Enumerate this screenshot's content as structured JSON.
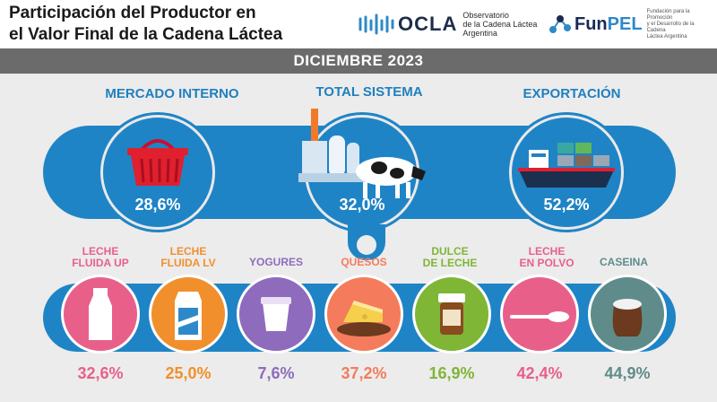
{
  "header": {
    "title_line1": "Participación del Productor en",
    "title_line2": "el Valor Final de la Cadena Láctea",
    "ocla": {
      "word": "OCLA",
      "sub1": "Observatorio",
      "sub2": "de la Cadena Láctea",
      "sub3": "Argentina"
    },
    "funpel": {
      "word_a": "Fun",
      "word_b": "PEL",
      "sub1": "Fundación para la Promoción",
      "sub2": "y el Desarrollo de la Cadena",
      "sub3": "Láctea Argentina"
    }
  },
  "period": "DICIEMBRE 2023",
  "segments": [
    {
      "title": "MERCADO INTERNO",
      "pct": "28,6%",
      "icon": "basket-icon"
    },
    {
      "title": "TOTAL SISTEMA",
      "pct": "32,0%",
      "icon": "dairy-plant-cow-icon"
    },
    {
      "title": "EXPORTACIÓN",
      "pct": "52,2%",
      "icon": "cargo-ship-icon"
    }
  ],
  "products": [
    {
      "line1": "LECHE",
      "line2": "FLUIDA UP",
      "pct": "32,6%",
      "color": "#e8608a",
      "icon": "milk-bottle-icon"
    },
    {
      "line1": "LECHE",
      "line2": "FLUIDA LV",
      "pct": "25,0%",
      "color": "#f28f2d",
      "icon": "milk-carton-icon"
    },
    {
      "line1": "YOGURES",
      "line2": "",
      "pct": "7,6%",
      "color": "#8e6bbd",
      "icon": "yogurt-cup-icon"
    },
    {
      "line1": "QUESOS",
      "line2": "",
      "pct": "37,2%",
      "color": "#f47c5c",
      "icon": "cheese-icon"
    },
    {
      "line1": "DULCE",
      "line2": "DE LECHE",
      "pct": "16,9%",
      "color": "#7fb636",
      "icon": "dulce-jar-icon"
    },
    {
      "line1": "LECHE",
      "line2": "EN POLVO",
      "pct": "42,4%",
      "color": "#e8608a",
      "icon": "powder-spoon-icon"
    },
    {
      "line1": "CASEINA",
      "line2": "",
      "pct": "44,9%",
      "color": "#5f8c8a",
      "icon": "sack-icon"
    }
  ]
}
